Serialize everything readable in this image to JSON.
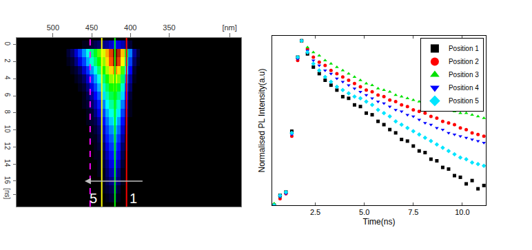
{
  "chart_data": [
    {
      "type": "heatmap",
      "x": [
        480,
        475,
        470,
        465,
        460,
        455,
        450,
        445,
        440,
        435,
        430,
        425,
        420,
        415,
        410,
        405,
        400,
        395,
        390,
        385,
        380
      ],
      "y": [
        0,
        1,
        2,
        3,
        4,
        5,
        6,
        7,
        8,
        9,
        10,
        11,
        12,
        13,
        14,
        15,
        16,
        17,
        18
      ],
      "z": [
        [
          0,
          0,
          0,
          0,
          1,
          1,
          2,
          3,
          4,
          5,
          6,
          8,
          10,
          9,
          7,
          4,
          2,
          0,
          0,
          0,
          0
        ],
        [
          2,
          4,
          8,
          14,
          22,
          32,
          42,
          52,
          62,
          72,
          82,
          92,
          100,
          95,
          80,
          50,
          20,
          6,
          2,
          0,
          0
        ],
        [
          1,
          2,
          5,
          9,
          15,
          24,
          34,
          44,
          55,
          66,
          78,
          90,
          98,
          92,
          75,
          42,
          15,
          4,
          1,
          0,
          0
        ],
        [
          0,
          1,
          2,
          4,
          8,
          14,
          22,
          32,
          44,
          56,
          68,
          78,
          85,
          78,
          60,
          30,
          10,
          2,
          0,
          0,
          0
        ],
        [
          0,
          0,
          1,
          2,
          4,
          8,
          14,
          22,
          32,
          44,
          56,
          66,
          72,
          64,
          46,
          20,
          6,
          1,
          0,
          0,
          0
        ],
        [
          0,
          0,
          0,
          1,
          2,
          5,
          9,
          15,
          24,
          35,
          46,
          56,
          60,
          52,
          35,
          14,
          4,
          0,
          0,
          0,
          0
        ],
        [
          0,
          0,
          0,
          0,
          1,
          3,
          6,
          10,
          17,
          27,
          38,
          47,
          50,
          43,
          27,
          10,
          2,
          0,
          0,
          0,
          0
        ],
        [
          0,
          0,
          0,
          0,
          1,
          2,
          4,
          7,
          12,
          20,
          30,
          39,
          42,
          35,
          20,
          7,
          1,
          0,
          0,
          0,
          0
        ],
        [
          0,
          0,
          0,
          0,
          0,
          1,
          2,
          5,
          9,
          15,
          24,
          32,
          35,
          28,
          15,
          5,
          1,
          0,
          0,
          0,
          0
        ],
        [
          0,
          0,
          0,
          0,
          0,
          1,
          2,
          3,
          6,
          11,
          19,
          26,
          29,
          22,
          11,
          3,
          0,
          0,
          0,
          0,
          0
        ],
        [
          0,
          0,
          0,
          0,
          0,
          0,
          1,
          2,
          4,
          8,
          15,
          21,
          24,
          18,
          8,
          2,
          0,
          0,
          0,
          0,
          0
        ],
        [
          0,
          0,
          0,
          0,
          0,
          0,
          1,
          1,
          3,
          6,
          12,
          17,
          20,
          14,
          6,
          1,
          0,
          0,
          0,
          0,
          0
        ],
        [
          0,
          0,
          0,
          0,
          0,
          0,
          0,
          1,
          2,
          4,
          9,
          14,
          16,
          11,
          4,
          1,
          0,
          0,
          0,
          0,
          0
        ],
        [
          0,
          0,
          0,
          0,
          0,
          0,
          0,
          1,
          1,
          3,
          7,
          11,
          13,
          9,
          3,
          0,
          0,
          0,
          0,
          0,
          0
        ],
        [
          0,
          0,
          0,
          0,
          0,
          0,
          0,
          0,
          1,
          2,
          5,
          9,
          10,
          7,
          2,
          0,
          0,
          0,
          0,
          0,
          0
        ],
        [
          0,
          0,
          0,
          0,
          0,
          0,
          0,
          0,
          1,
          1,
          4,
          7,
          8,
          5,
          1,
          0,
          0,
          0,
          0,
          0,
          0
        ],
        [
          0,
          0,
          0,
          0,
          0,
          0,
          0,
          0,
          0,
          1,
          3,
          5,
          6,
          4,
          1,
          0,
          0,
          0,
          0,
          0,
          0
        ],
        [
          0,
          0,
          0,
          0,
          0,
          0,
          0,
          0,
          0,
          1,
          2,
          3,
          4,
          2,
          0,
          0,
          0,
          0,
          0,
          0,
          0
        ],
        [
          0,
          0,
          0,
          0,
          0,
          0,
          0,
          0,
          0,
          0,
          1,
          2,
          2,
          1,
          0,
          0,
          0,
          0,
          0,
          0,
          0
        ]
      ],
      "zlim": [
        0,
        100
      ],
      "xlim": [
        547,
        257
      ],
      "xticks": [
        500,
        450,
        400,
        350,
        {
          "value": 272,
          "label": "[nm]"
        }
      ],
      "ylim": [
        19,
        -0.8
      ],
      "yticks": [
        0,
        2,
        4,
        6,
        8,
        10,
        12,
        14,
        16,
        {
          "value": 17.6,
          "label": "[ns]"
        }
      ],
      "grid": false,
      "lines": [
        {
          "x": 452,
          "color": "#ff00ff",
          "line_style": "dash"
        },
        {
          "x": 437,
          "color": "#ffff00",
          "line_style": "solid"
        },
        {
          "x": 420,
          "color": "#00ff00",
          "line_style": "solid"
        },
        {
          "x": 405,
          "color": "#ff0000",
          "line_style": "solid"
        }
      ],
      "arrow": {
        "from": 383,
        "to": 459,
        "y": 16
      },
      "annotations": [
        {
          "text": "5",
          "x": 448,
          "y": 18
        },
        {
          "text": "1",
          "x": 396,
          "y": 18
        }
      ]
    },
    {
      "type": "scatter",
      "x_label": "Time(ns)",
      "y_label": "Normalised PL Intensity(a.u)",
      "x": [
        0.4,
        0.7,
        1.0,
        1.3,
        1.6,
        1.8,
        2.1,
        2.4,
        2.7,
        3.0,
        3.3,
        3.6,
        3.9,
        4.2,
        4.5,
        4.8,
        5.1,
        5.4,
        5.7,
        6.0,
        6.3,
        6.6,
        6.9,
        7.2,
        7.5,
        7.8,
        8.1,
        8.4,
        8.7,
        9.0,
        9.3,
        9.6,
        9.9,
        10.2,
        10.5,
        10.8,
        11.1
      ],
      "series": [
        {
          "name": "Position 1",
          "color": "#000000",
          "marker": "square",
          "values": [
            0.0,
            0.06,
            0.08,
            0.45,
            0.9,
            1.0,
            0.92,
            0.84,
            0.8,
            0.76,
            0.73,
            0.7,
            0.66,
            0.65,
            0.61,
            0.6,
            0.56,
            0.55,
            0.51,
            0.49,
            0.46,
            0.44,
            0.4,
            0.39,
            0.36,
            0.33,
            0.32,
            0.28,
            0.27,
            0.23,
            0.22,
            0.18,
            0.17,
            0.13,
            0.15,
            0.1,
            0.12
          ]
        },
        {
          "name": "Position 2",
          "color": "#ff0000",
          "marker": "circle",
          "values": [
            0.0,
            0.04,
            0.07,
            0.42,
            0.88,
            1.0,
            0.95,
            0.9,
            0.87,
            0.85,
            0.82,
            0.8,
            0.78,
            0.76,
            0.74,
            0.72,
            0.7,
            0.69,
            0.67,
            0.66,
            0.64,
            0.63,
            0.61,
            0.6,
            0.58,
            0.57,
            0.56,
            0.54,
            0.53,
            0.51,
            0.5,
            0.49,
            0.47,
            0.46,
            0.44,
            0.43,
            0.42
          ]
        },
        {
          "name": "Position 3",
          "color": "#00e000",
          "marker": "triangle-up",
          "values": [
            0.01,
            0.05,
            0.08,
            0.44,
            0.9,
            1.0,
            0.96,
            0.93,
            0.91,
            0.88,
            0.86,
            0.84,
            0.82,
            0.8,
            0.78,
            0.76,
            0.74,
            0.73,
            0.71,
            0.7,
            0.69,
            0.67,
            0.66,
            0.65,
            0.64,
            0.63,
            0.62,
            0.61,
            0.6,
            0.59,
            0.58,
            0.57,
            0.56,
            0.56,
            0.55,
            0.54,
            0.53
          ]
        },
        {
          "name": "Position 4",
          "color": "#0000ff",
          "marker": "triangle-down",
          "values": [
            0.0,
            0.05,
            0.07,
            0.43,
            0.89,
            1.0,
            0.94,
            0.88,
            0.85,
            0.82,
            0.8,
            0.77,
            0.75,
            0.73,
            0.71,
            0.69,
            0.67,
            0.65,
            0.63,
            0.62,
            0.6,
            0.58,
            0.57,
            0.55,
            0.54,
            0.52,
            0.5,
            0.49,
            0.47,
            0.46,
            0.44,
            0.43,
            0.42,
            0.41,
            0.4,
            0.39,
            0.38
          ]
        },
        {
          "name": "Position 5",
          "color": "#00e5ff",
          "marker": "diamond",
          "values": [
            0.0,
            0.06,
            0.08,
            0.44,
            0.9,
            1.0,
            0.93,
            0.86,
            0.82,
            0.78,
            0.75,
            0.72,
            0.7,
            0.68,
            0.66,
            0.65,
            0.63,
            0.61,
            0.58,
            0.56,
            0.54,
            0.51,
            0.49,
            0.47,
            0.45,
            0.43,
            0.41,
            0.39,
            0.37,
            0.35,
            0.33,
            0.31,
            0.29,
            0.28,
            0.26,
            0.25,
            0.24
          ]
        }
      ],
      "xlim": [
        0.3,
        11.2
      ],
      "xticks": [
        2.5,
        {
          "value": 5,
          "label": "5.0"
        },
        7.5,
        {
          "value": 10,
          "label": "10.0"
        }
      ],
      "ylim": [
        0,
        1.03
      ],
      "tick_labels": "x",
      "legend": "upper right",
      "grid": false
    }
  ]
}
